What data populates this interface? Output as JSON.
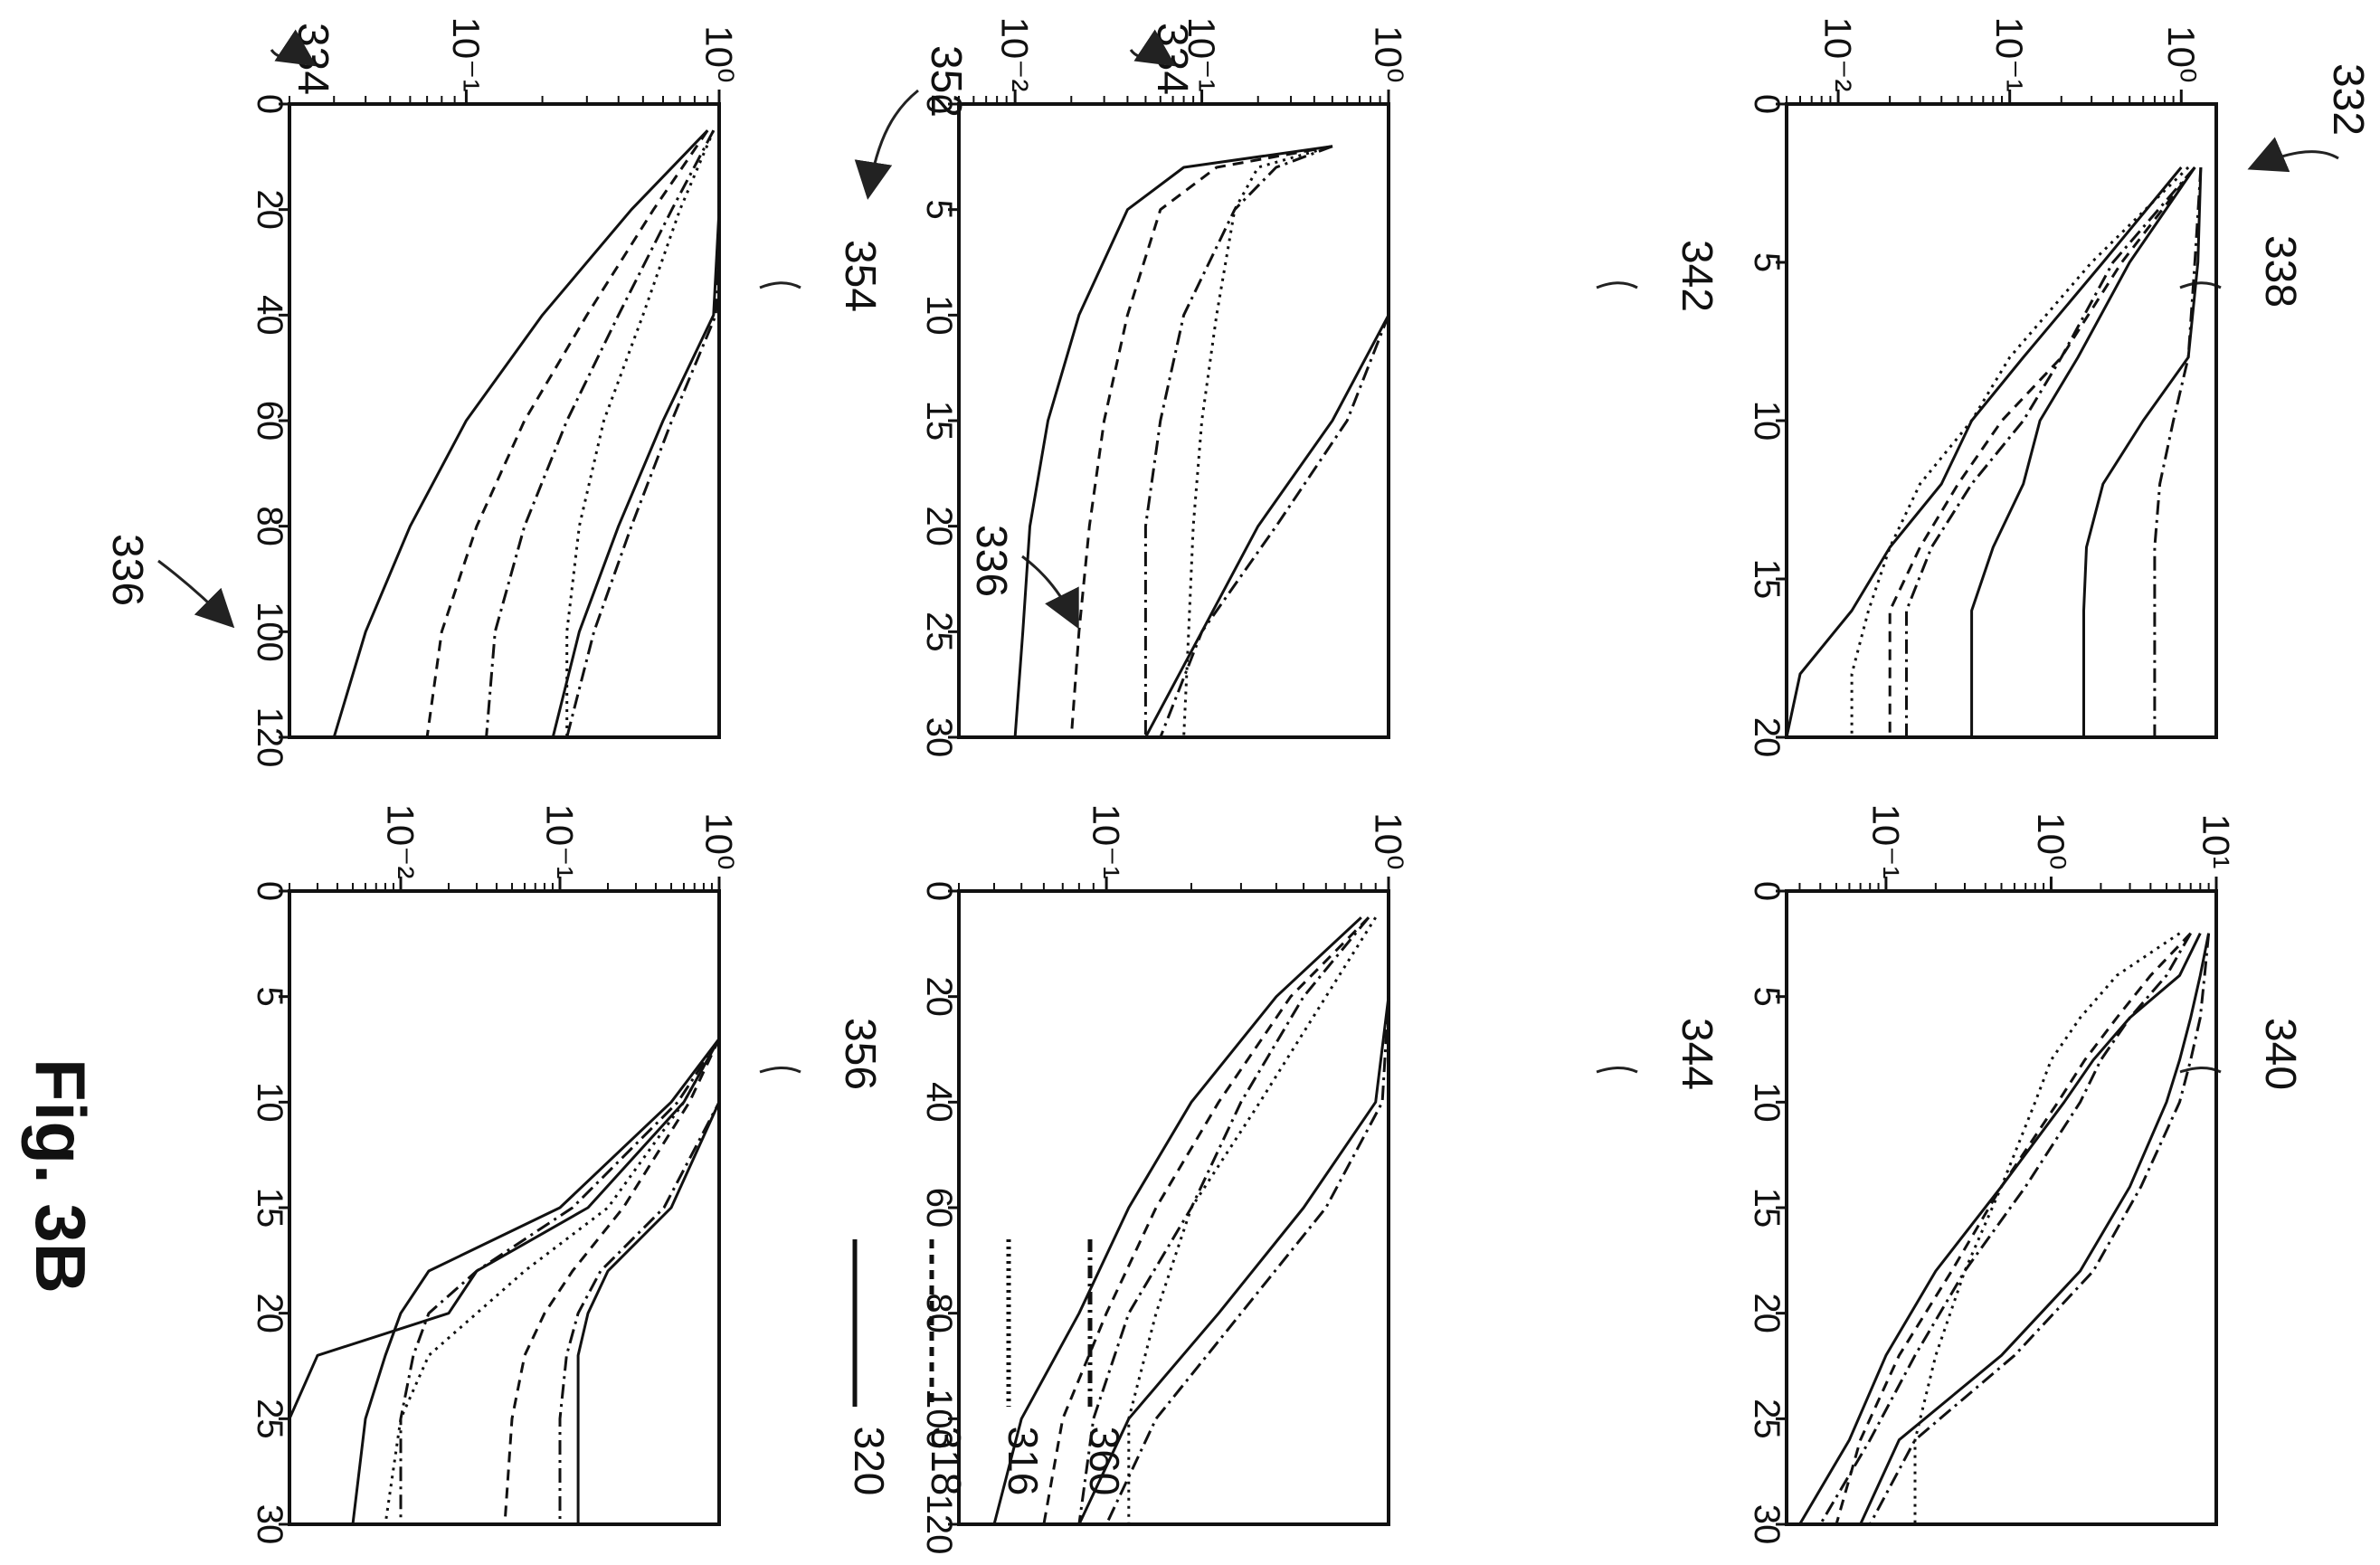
{
  "figure": {
    "title": "Fig. 3B",
    "ref_labels": [
      "332",
      "334",
      "336",
      "338",
      "340",
      "342",
      "344",
      "352",
      "354",
      "356"
    ]
  },
  "legend": [
    {
      "label": "360",
      "style": "dash-dot"
    },
    {
      "label": "316",
      "style": "dotted"
    },
    {
      "label": "318",
      "style": "dashed"
    },
    {
      "label": "320",
      "style": "solid"
    }
  ],
  "chart_data": [
    {
      "type": "line",
      "panel": "top-left",
      "ref": "338",
      "x_scale": "linear",
      "y_scale": "log",
      "xlim": [
        0,
        20
      ],
      "ylim": [
        0.005,
        1.6
      ],
      "x_ticks": [
        "0",
        "5",
        "10",
        "15",
        "20"
      ],
      "y_ticks": [
        {
          "value": 0.01,
          "label": "10⁻²"
        },
        {
          "value": 0.1,
          "label": "10⁻¹"
        },
        {
          "value": 1,
          "label": "10⁰"
        }
      ],
      "x": [
        2,
        5,
        8,
        10,
        12,
        14,
        16,
        18,
        20
      ],
      "series": [
        {
          "style": "solid",
          "values": [
            1.2,
            0.5,
            0.25,
            0.15,
            0.12,
            0.08,
            0.06,
            0.06,
            0.06
          ]
        },
        {
          "style": "dotted",
          "values": [
            1.1,
            0.3,
            0.1,
            0.06,
            0.03,
            0.02,
            0.015,
            0.012,
            0.012
          ]
        },
        {
          "style": "dash-dot",
          "values": [
            1.2,
            0.4,
            0.2,
            0.12,
            0.06,
            0.035,
            0.025,
            0.025,
            0.025
          ]
        },
        {
          "style": "dashed",
          "values": [
            1.2,
            0.45,
            0.2,
            0.09,
            0.05,
            0.03,
            0.02,
            0.02,
            0.02
          ]
        },
        {
          "style": "solid",
          "values": [
            1.0,
            0.35,
            0.12,
            0.06,
            0.04,
            0.02,
            0.012,
            0.006,
            0.005
          ]
        },
        {
          "style": "dash-dot",
          "values": [
            1.3,
            1.2,
            1.1,
            0.9,
            0.75,
            0.7,
            0.7,
            0.7,
            0.7
          ]
        },
        {
          "style": "solid",
          "values": [
            1.3,
            1.25,
            1.1,
            0.6,
            0.35,
            0.28,
            0.27,
            0.27,
            0.27
          ]
        }
      ]
    },
    {
      "type": "line",
      "panel": "top-right",
      "ref": "340",
      "x_scale": "linear",
      "y_scale": "log",
      "xlim": [
        0,
        30
      ],
      "ylim": [
        0.025,
        10
      ],
      "x_ticks": [
        "0",
        "5",
        "10",
        "15",
        "20",
        "25",
        "30"
      ],
      "y_ticks": [
        {
          "value": 0.1,
          "label": "10⁻¹"
        },
        {
          "value": 1,
          "label": "10⁰"
        },
        {
          "value": 10,
          "label": "10¹"
        }
      ],
      "x": [
        2,
        4,
        6,
        8,
        10,
        14,
        18,
        22,
        26,
        30
      ],
      "series": [
        {
          "style": "solid",
          "values": [
            8,
            6,
            3,
            1.8,
            1.2,
            0.5,
            0.2,
            0.1,
            0.06,
            0.03
          ]
        },
        {
          "style": "dotted",
          "values": [
            6,
            2.5,
            1.5,
            1,
            0.8,
            0.5,
            0.3,
            0.2,
            0.15,
            0.15
          ]
        },
        {
          "style": "dash-dot",
          "values": [
            7,
            5,
            3,
            2,
            1.5,
            0.7,
            0.3,
            0.15,
            0.08,
            0.04
          ]
        },
        {
          "style": "dashed",
          "values": [
            7,
            4,
            2.5,
            1.6,
            1.1,
            0.5,
            0.25,
            0.12,
            0.07,
            0.05
          ]
        },
        {
          "style": "solid",
          "values": [
            9,
            8,
            7,
            6,
            5,
            3,
            1.5,
            0.5,
            0.12,
            0.07
          ]
        },
        {
          "style": "dash-dot",
          "values": [
            9,
            8.5,
            8,
            7,
            6,
            3.5,
            1.8,
            0.6,
            0.15,
            0.08
          ]
        }
      ]
    },
    {
      "type": "line",
      "panel": "middle-left",
      "ref": "342",
      "x_scale": "linear",
      "y_scale": "log",
      "xlim": [
        0,
        30
      ],
      "ylim": [
        0.005,
        1
      ],
      "x_ticks": [
        "0",
        "5",
        "10",
        "15",
        "20",
        "25",
        "30"
      ],
      "y_ticks": [
        {
          "value": 0.01,
          "label": "10⁻²"
        },
        {
          "value": 0.1,
          "label": "10⁻¹"
        },
        {
          "value": 1,
          "label": "10⁰"
        }
      ],
      "x": [
        2,
        3,
        5,
        10,
        15,
        20,
        25,
        30
      ],
      "series": [
        {
          "style": "solid",
          "values": [
            0.5,
            0.08,
            0.04,
            0.022,
            0.015,
            0.012,
            0.011,
            0.01
          ]
        },
        {
          "style": "dashed",
          "values": [
            0.5,
            0.12,
            0.06,
            0.04,
            0.03,
            0.025,
            0.022,
            0.02
          ]
        },
        {
          "style": "dotted",
          "values": [
            0.5,
            0.2,
            0.15,
            0.12,
            0.1,
            0.09,
            0.085,
            0.08
          ]
        },
        {
          "style": "dash-dot",
          "values": [
            0.5,
            0.25,
            0.15,
            0.08,
            0.06,
            0.05,
            0.05,
            0.05
          ]
        },
        {
          "style": "solid",
          "values": [
            1,
            1,
            1,
            1,
            0.5,
            0.2,
            0.1,
            0.05
          ]
        },
        {
          "style": "dash-dot",
          "values": [
            1,
            1,
            1,
            1,
            0.6,
            0.25,
            0.1,
            0.06
          ]
        }
      ]
    },
    {
      "type": "line",
      "panel": "middle-right",
      "ref": "344",
      "x_scale": "linear",
      "y_scale": "log",
      "xlim": [
        0,
        120
      ],
      "ylim": [
        0.03,
        1
      ],
      "x_ticks": [
        "0",
        "20",
        "40",
        "60",
        "80",
        "100",
        "120"
      ],
      "y_ticks": [
        {
          "value": 0.1,
          "label": "10⁻¹"
        },
        {
          "value": 1,
          "label": "10⁰"
        }
      ],
      "x": [
        5,
        20,
        40,
        60,
        80,
        100,
        120
      ],
      "series": [
        {
          "style": "solid",
          "values": [
            0.8,
            0.4,
            0.2,
            0.12,
            0.08,
            0.05,
            0.04
          ]
        },
        {
          "style": "dotted",
          "values": [
            0.9,
            0.6,
            0.35,
            0.2,
            0.15,
            0.12,
            0.12
          ]
        },
        {
          "style": "dash-dot",
          "values": [
            0.85,
            0.5,
            0.3,
            0.2,
            0.12,
            0.09,
            0.08
          ]
        },
        {
          "style": "dashed",
          "values": [
            0.85,
            0.45,
            0.25,
            0.15,
            0.1,
            0.07,
            0.06
          ]
        },
        {
          "style": "solid",
          "values": [
            1,
            1,
            0.9,
            0.5,
            0.25,
            0.12,
            0.08
          ]
        },
        {
          "style": "dash-dot",
          "values": [
            1,
            1,
            0.95,
            0.6,
            0.3,
            0.15,
            0.1
          ]
        }
      ]
    },
    {
      "type": "line",
      "panel": "bottom-left",
      "ref": "354",
      "x_scale": "linear",
      "y_scale": "log",
      "xlim": [
        0,
        120
      ],
      "ylim": [
        0.02,
        1
      ],
      "x_ticks": [
        "0",
        "20",
        "40",
        "60",
        "80",
        "100",
        "120"
      ],
      "y_ticks": [
        {
          "value": 0.1,
          "label": "10⁻¹"
        },
        {
          "value": 1,
          "label": "10⁰"
        }
      ],
      "x": [
        5,
        20,
        40,
        60,
        80,
        100,
        120
      ],
      "series": [
        {
          "style": "solid",
          "values": [
            0.9,
            0.45,
            0.2,
            0.1,
            0.06,
            0.04,
            0.03
          ]
        },
        {
          "style": "dashed",
          "values": [
            0.9,
            0.55,
            0.3,
            0.17,
            0.11,
            0.08,
            0.07
          ]
        },
        {
          "style": "dotted",
          "values": [
            0.95,
            0.7,
            0.5,
            0.35,
            0.28,
            0.25,
            0.25
          ]
        },
        {
          "style": "dash-dot",
          "values": [
            0.95,
            0.65,
            0.4,
            0.25,
            0.17,
            0.13,
            0.12
          ]
        },
        {
          "style": "solid",
          "values": [
            1,
            1,
            0.95,
            0.6,
            0.4,
            0.28,
            0.22
          ]
        },
        {
          "style": "dash-dot",
          "values": [
            1,
            1,
            0.97,
            0.65,
            0.45,
            0.32,
            0.25
          ]
        }
      ]
    },
    {
      "type": "line",
      "panel": "bottom-right",
      "ref": "356",
      "x_scale": "linear",
      "y_scale": "log",
      "xlim": [
        0,
        30
      ],
      "ylim": [
        0.002,
        1
      ],
      "x_ticks": [
        "0",
        "5",
        "10",
        "15",
        "20",
        "25",
        "30"
      ],
      "y_ticks": [
        {
          "value": 0.01,
          "label": "10⁻²"
        },
        {
          "value": 0.1,
          "label": "10⁻¹"
        },
        {
          "value": 1,
          "label": "10⁰"
        }
      ],
      "x": [
        7,
        10,
        15,
        18,
        20,
        22,
        25,
        30
      ],
      "series": [
        {
          "style": "solid",
          "values": [
            1,
            0.5,
            0.1,
            0.015,
            0.01,
            0.008,
            0.006,
            0.005
          ]
        },
        {
          "style": "dash-dot",
          "values": [
            1,
            0.55,
            0.12,
            0.03,
            0.015,
            0.012,
            0.01,
            0.01
          ]
        },
        {
          "style": "dotted",
          "values": [
            1,
            0.6,
            0.2,
            0.06,
            0.03,
            0.015,
            0.01,
            0.008
          ]
        },
        {
          "style": "solid",
          "values": [
            1,
            0.6,
            0.15,
            0.03,
            0.02,
            0.003,
            0.002,
            0.002
          ]
        },
        {
          "style": "dashed",
          "values": [
            1,
            0.65,
            0.25,
            0.12,
            0.08,
            0.06,
            0.05,
            0.045
          ]
        },
        {
          "style": "solid",
          "values": [
            1,
            1,
            0.5,
            0.2,
            0.15,
            0.13,
            0.13,
            0.13
          ]
        },
        {
          "style": "dash-dot",
          "values": [
            1,
            1,
            0.45,
            0.18,
            0.13,
            0.11,
            0.1,
            0.1
          ]
        }
      ]
    }
  ]
}
